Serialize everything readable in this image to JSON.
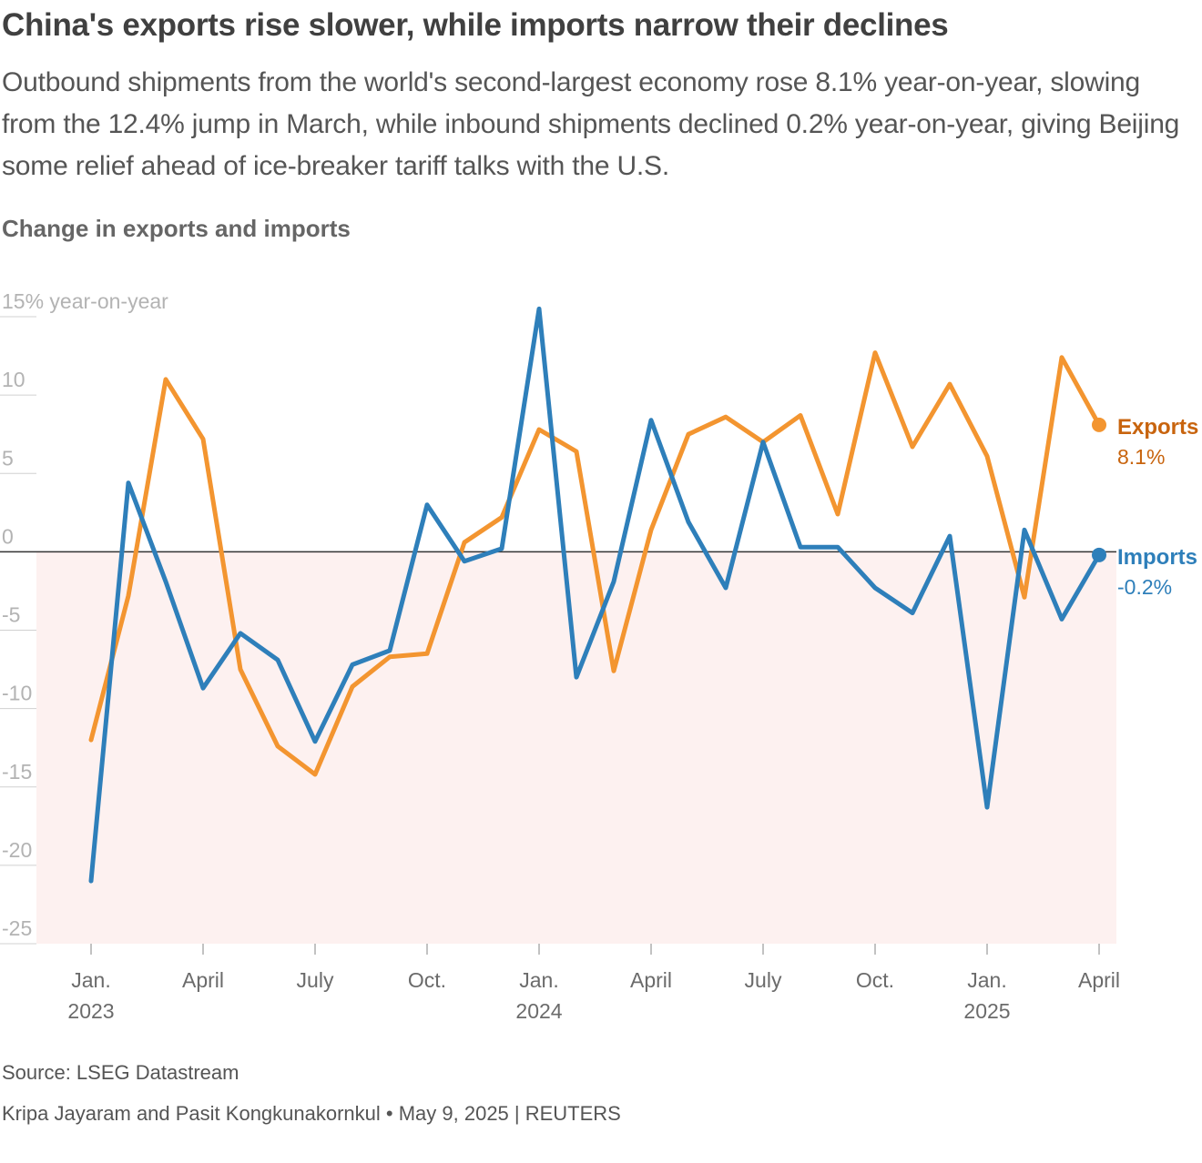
{
  "header": {
    "title": "China's exports rise slower, while imports narrow their declines",
    "subtitle": "Outbound shipments from the world's second-largest economy rose 8.1% year-on-year, slowing from the 12.4% jump in March, while inbound shipments declined 0.2% year-on-year, giving Beijing some relief ahead of ice-breaker tariff talks with the U.S."
  },
  "footer": {
    "source": "Source: LSEG Datastream",
    "credit": "Kripa Jayaram and Pasit Kongkunakornkul • May 9, 2025 | REUTERS"
  },
  "colors": {
    "exports": "#f39530",
    "exports_label": "#c8640e",
    "imports": "#2e7fba",
    "negative_band": "#fdf1f0",
    "zero_line": "#333333",
    "axis_text": "#b3b3b3",
    "tick_text": "#6b6b6b"
  },
  "chart_data": {
    "type": "line",
    "title": "Change in exports and imports",
    "ylabel": "year-on-year",
    "ylim": [
      -25,
      15
    ],
    "y_ticks": [
      {
        "value": 15,
        "label": "15% year-on-year"
      },
      {
        "value": 10,
        "label": "10"
      },
      {
        "value": 5,
        "label": "5"
      },
      {
        "value": 0,
        "label": "0"
      },
      {
        "value": -5,
        "label": "-5"
      },
      {
        "value": -10,
        "label": "-10"
      },
      {
        "value": -15,
        "label": "-15"
      },
      {
        "value": -20,
        "label": "-20"
      },
      {
        "value": -25,
        "label": "-25"
      }
    ],
    "x_ticks": [
      {
        "index": 0,
        "line1": "Jan.",
        "line2": "2023"
      },
      {
        "index": 3,
        "line1": "April",
        "line2": ""
      },
      {
        "index": 6,
        "line1": "July",
        "line2": ""
      },
      {
        "index": 9,
        "line1": "Oct.",
        "line2": ""
      },
      {
        "index": 12,
        "line1": "Jan.",
        "line2": "2024"
      },
      {
        "index": 15,
        "line1": "April",
        "line2": ""
      },
      {
        "index": 18,
        "line1": "July",
        "line2": ""
      },
      {
        "index": 21,
        "line1": "Oct.",
        "line2": ""
      },
      {
        "index": 24,
        "line1": "Jan.",
        "line2": "2025"
      },
      {
        "index": 27,
        "line1": "April",
        "line2": ""
      }
    ],
    "x": [
      "2023-01",
      "2023-02",
      "2023-03",
      "2023-04",
      "2023-05",
      "2023-06",
      "2023-07",
      "2023-08",
      "2023-09",
      "2023-10",
      "2023-11",
      "2023-12",
      "2024-01",
      "2024-02",
      "2024-03",
      "2024-04",
      "2024-05",
      "2024-06",
      "2024-07",
      "2024-08",
      "2024-09",
      "2024-10",
      "2024-11",
      "2024-12",
      "2025-01",
      "2025-02",
      "2025-03",
      "2025-04"
    ],
    "series": [
      {
        "name": "Exports",
        "end_label": "8.1%",
        "values": [
          -12,
          -2.8,
          11,
          7.2,
          -7.5,
          -12.4,
          -14.2,
          -8.6,
          -6.7,
          -6.5,
          0.6,
          2.2,
          7.8,
          6.4,
          -7.6,
          1.4,
          7.5,
          8.6,
          7.0,
          8.7,
          2.4,
          12.7,
          6.7,
          10.7,
          6.1,
          -2.9,
          12.4,
          8.1
        ]
      },
      {
        "name": "Imports",
        "end_label": "-0.2%",
        "values": [
          -21,
          4.4,
          -1.9,
          -8.7,
          -5.2,
          -6.9,
          -12.1,
          -7.2,
          -6.3,
          3.0,
          -0.6,
          0.2,
          15.5,
          -8.0,
          -1.9,
          8.4,
          1.9,
          -2.3,
          7.0,
          0.3,
          0.3,
          -2.3,
          -3.9,
          1.0,
          -16.3,
          1.4,
          -4.3,
          -0.2
        ]
      }
    ]
  }
}
